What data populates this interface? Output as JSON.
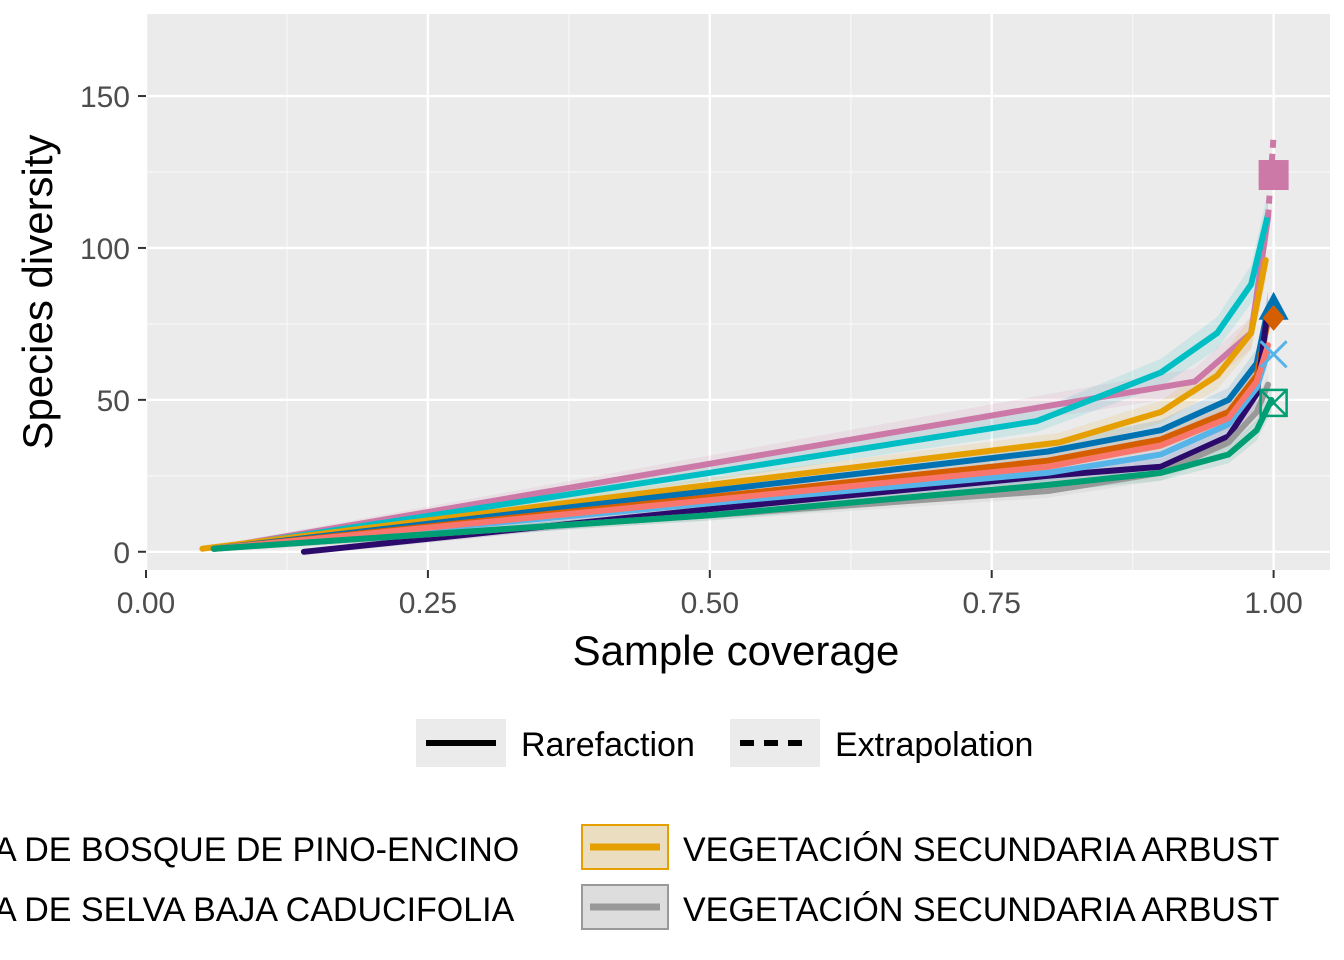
{
  "chart_data": {
    "type": "line",
    "xlabel": "Sample coverage",
    "ylabel": "Species diversity",
    "xlim": [
      0.0,
      1.05
    ],
    "ylim": [
      -6,
      177
    ],
    "x_ticks": [
      0.0,
      0.25,
      0.5,
      0.75,
      1.0
    ],
    "x_tick_labels": [
      "0.00",
      "0.25",
      "0.50",
      "0.75",
      "1.00"
    ],
    "y_ticks": [
      0,
      50,
      100,
      150
    ],
    "y_tick_labels": [
      "0",
      "50",
      "100",
      "150"
    ],
    "grid": true,
    "legend_position": "bottom",
    "linetype_legend": [
      "Rarefaction",
      "Extrapolation"
    ],
    "color_legend": [
      {
        "label": "VEGETACIÓN SECUNDARIA ARBUSTIVA DE BOSQUE DE PINO-ENCINO",
        "visible_text": "A DE BOSQUE DE PINO-ENCINO",
        "color": "#000000"
      },
      {
        "label": "VEGETACIÓN SECUNDARIA ARBUSTIVA DE SELVA BAJA CADUCIFOLIA",
        "visible_text": "A DE SELVA BAJA CADUCIFOLIA",
        "color": "#000000"
      },
      {
        "label": "VEGETACIÓN SECUNDARIA ARBUSTIVA",
        "visible_text": "VEGETACIÓN SECUNDARIA ARBUST",
        "color": "#E69F00"
      },
      {
        "label": "VEGETACIÓN SECUNDARIA ARBUSTIVA",
        "visible_text": "VEGETACIÓN SECUNDARIA ARBUST",
        "color": "#999999"
      }
    ],
    "series": [
      {
        "color": "#CC79A7",
        "x": [
          0.06,
          0.8,
          0.93,
          0.98,
          0.995
        ],
        "y": [
          1,
          48,
          56,
          72,
          110
        ],
        "marker": "square",
        "marker_y": 124,
        "ext_x": [
          0.995,
          1.0
        ],
        "ext_y": [
          110,
          137
        ]
      },
      {
        "color": "#00BFC4",
        "x": [
          0.06,
          0.5,
          0.79,
          0.9,
          0.95,
          0.98,
          0.995
        ],
        "y": [
          1,
          26,
          43,
          59,
          72,
          88,
          111
        ],
        "marker": "none"
      },
      {
        "color": "#E69F00",
        "x": [
          0.05,
          0.5,
          0.81,
          0.9,
          0.95,
          0.98,
          0.993
        ],
        "y": [
          1,
          22,
          36,
          46,
          58,
          72,
          96
        ],
        "marker": "none"
      },
      {
        "color": "#0072B2",
        "x": [
          0.06,
          0.5,
          0.8,
          0.9,
          0.96,
          0.985,
          0.995
        ],
        "y": [
          1,
          20,
          33,
          40,
          50,
          62,
          80
        ],
        "marker": "triangle",
        "marker_y": 80
      },
      {
        "color": "#D55E00",
        "x": [
          0.06,
          0.5,
          0.8,
          0.9,
          0.96,
          0.985,
          0.995
        ],
        "y": [
          1,
          18,
          30,
          37,
          46,
          58,
          76
        ],
        "marker": "diamond",
        "marker_y": 77
      },
      {
        "color": "#2C0A6B",
        "x": [
          0.14,
          0.5,
          0.8,
          0.9,
          0.96,
          0.985,
          0.995
        ],
        "y": [
          0,
          14,
          25,
          28,
          38,
          52,
          80
        ],
        "marker": "none"
      },
      {
        "color": "#56B4E9",
        "x": [
          0.06,
          0.5,
          0.8,
          0.9,
          0.96,
          0.985,
          0.995
        ],
        "y": [
          1,
          16,
          26,
          32,
          42,
          54,
          66
        ],
        "marker": "x",
        "marker_y": 65
      },
      {
        "color": "#F8766D",
        "x": [
          0.06,
          0.5,
          0.8,
          0.9,
          0.96,
          0.985,
          0.995
        ],
        "y": [
          1,
          17,
          28,
          35,
          44,
          56,
          68
        ],
        "marker": "none"
      },
      {
        "color": "#999999",
        "x": [
          0.06,
          0.5,
          0.8,
          0.9,
          0.96,
          0.985,
          0.995
        ],
        "y": [
          1,
          12,
          20,
          26,
          36,
          46,
          55
        ],
        "marker": "none"
      },
      {
        "color": "#009E73",
        "x": [
          0.06,
          0.5,
          0.8,
          0.9,
          0.96,
          0.985,
          0.998
        ],
        "y": [
          1,
          12,
          22,
          26,
          32,
          40,
          50
        ],
        "marker": "boxx",
        "marker_y": 49
      }
    ]
  }
}
